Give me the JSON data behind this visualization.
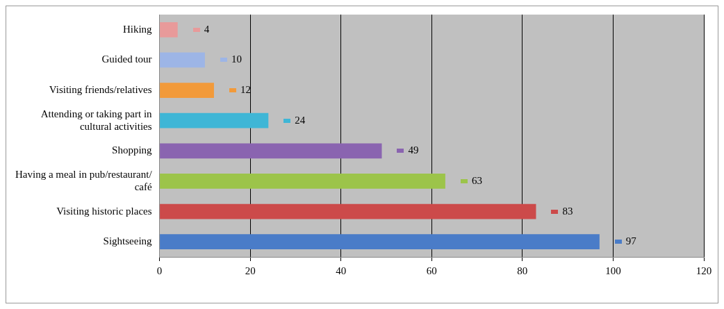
{
  "chart_data": {
    "type": "bar",
    "orientation": "horizontal",
    "categories": [
      "Hiking",
      "Guided tour",
      "Visiting friends/relatives",
      "Attending or taking part in cultural activities",
      "Shopping",
      "Having a meal in pub/restaurant/ café",
      "Visiting historic places",
      "Sightseeing"
    ],
    "values": [
      4,
      10,
      12,
      24,
      49,
      63,
      83,
      97
    ],
    "colors": [
      "#e89a9a",
      "#9db5e6",
      "#f29a3a",
      "#3fb6d6",
      "#8a64b0",
      "#9cc44a",
      "#cc4a4a",
      "#4a7cc8"
    ],
    "xlim": [
      0,
      120
    ],
    "xticks": [
      0,
      20,
      40,
      60,
      80,
      100,
      120
    ],
    "grid": "x",
    "legend": false,
    "data_labels": true
  }
}
